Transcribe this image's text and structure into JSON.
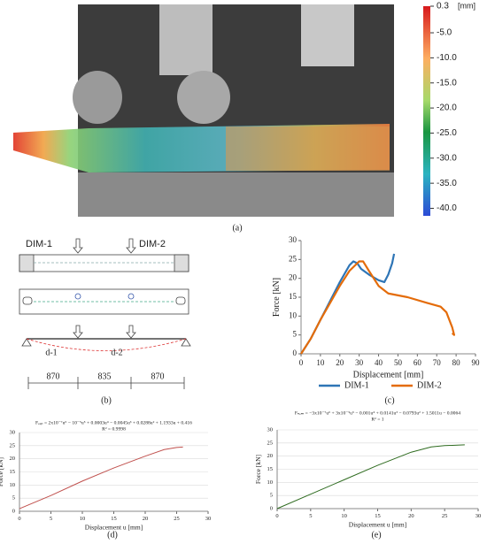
{
  "panel_a": {
    "label": "(a)",
    "colorbar": {
      "unit": "[mm]",
      "lim": [
        0.3,
        -41.5
      ],
      "ticks": [
        0.3,
        {
          "value": -5,
          "label": "-5.0"
        },
        {
          "value": -10,
          "label": "-10.0"
        },
        {
          "value": -15,
          "label": "-15.0"
        },
        {
          "value": -20,
          "label": "-20.0"
        },
        {
          "value": -25,
          "label": "-25.0"
        },
        {
          "value": -30,
          "label": "-30.0"
        },
        {
          "value": -35,
          "label": "-35.0"
        },
        {
          "value": -40,
          "label": "-40.0"
        }
      ]
    }
  },
  "panel_b": {
    "label": "(b)",
    "beam_labels": [
      "DIM-1",
      "DIM-2"
    ],
    "deflection_labels": [
      "d-1",
      "d-2"
    ],
    "spans": [
      "870",
      "835",
      "870"
    ]
  },
  "chart_data": [
    {
      "type": "line",
      "panel_label": "(c)",
      "xlabel": "Displacement [mm]",
      "ylabel": "Force [kN]",
      "xlim": [
        0,
        90
      ],
      "xticks": [
        0,
        10,
        20,
        30,
        40,
        50,
        60,
        70,
        80,
        90
      ],
      "ylim": [
        0,
        30
      ],
      "yticks": [
        0,
        5,
        10,
        15,
        20,
        25,
        30
      ],
      "grid": false,
      "series": [
        {
          "name": "DIM-1",
          "color": "#2e75b6",
          "x": [
            0,
            5,
            10,
            15,
            20,
            25,
            27,
            29,
            31,
            35,
            40,
            43,
            45,
            47,
            48
          ],
          "values": [
            0,
            4,
            9,
            14,
            19,
            23.5,
            24.5,
            24,
            22.5,
            21,
            19.5,
            19,
            21,
            24,
            26.5
          ]
        },
        {
          "name": "DIM-2",
          "color": "#e46c0a",
          "x": [
            0,
            5,
            10,
            15,
            20,
            25,
            28,
            30,
            32,
            35,
            40,
            45,
            55,
            65,
            72,
            75,
            78,
            79,
            78
          ],
          "values": [
            0,
            4,
            9,
            13.5,
            18,
            22,
            23.5,
            24.5,
            24.5,
            22,
            18,
            16,
            15,
            13.5,
            12.5,
            11,
            7,
            5,
            5.5
          ]
        }
      ]
    },
    {
      "type": "line",
      "panel_label": "(d)",
      "title": "Fₑₓₚ = 2x10⁻⁷u⁶ − 10⁻⁵u⁵ + 0.0003u⁴ − 0.0045u³ + 0.0288u² + 1.1933u + 0.416",
      "subtitle": "R² = 0.9998",
      "xlabel": "Displacement u [mm]",
      "ylabel": "Force [kN]",
      "xlim": [
        0,
        30
      ],
      "xticks": [
        0,
        5,
        10,
        15,
        20,
        25,
        30
      ],
      "ylim": [
        0,
        30
      ],
      "yticks": [
        0,
        5,
        10,
        15,
        20,
        25,
        30
      ],
      "grid": true,
      "series": [
        {
          "color": "#c0504d",
          "x": [
            0,
            5,
            10,
            15,
            20,
            23,
            25,
            26
          ],
          "values": [
            1,
            6,
            11.5,
            16.5,
            21,
            23.5,
            24.3,
            24.5
          ]
        }
      ]
    },
    {
      "type": "line",
      "panel_label": "(e)",
      "title": "Fₙₑₘ = −3x10⁻⁷u⁶ + 3x10⁻⁵u⁵ − 0.001u⁴ + 0.0141u³ − 0.0793u² + 1.5011u − 0.0064",
      "subtitle": "R² = 1",
      "xlabel": "Displacement u [mm]",
      "ylabel": "Force [kN]",
      "xlim": [
        0,
        30
      ],
      "xticks": [
        0,
        5,
        10,
        15,
        20,
        25,
        30
      ],
      "ylim": [
        0,
        30
      ],
      "yticks": [
        0,
        5,
        10,
        15,
        20,
        25,
        30
      ],
      "grid": true,
      "series": [
        {
          "color": "#2e6b1f",
          "x": [
            0,
            5,
            10,
            15,
            20,
            23,
            25,
            28
          ],
          "values": [
            0,
            5.5,
            11,
            16.5,
            21.5,
            23.5,
            24,
            24.3
          ]
        }
      ]
    }
  ]
}
